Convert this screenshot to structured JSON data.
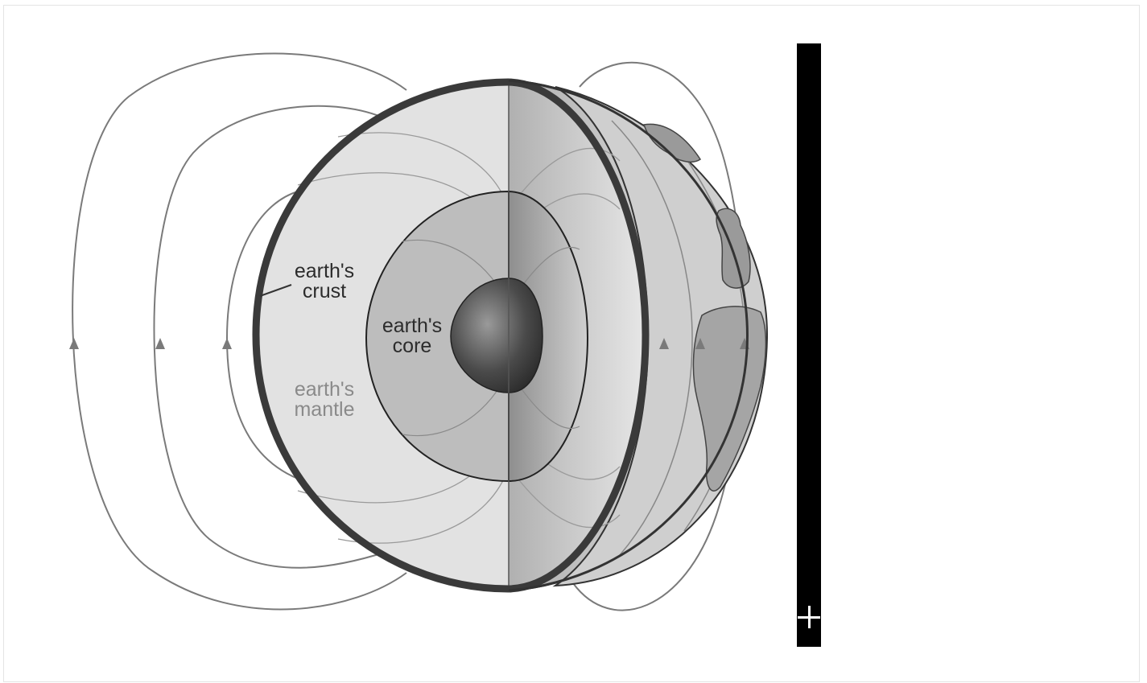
{
  "labels": {
    "crust": [
      "earth's",
      "crust"
    ],
    "core": [
      "earth's",
      "core"
    ],
    "mantle": [
      "earth's",
      "mantle"
    ]
  },
  "colors": {
    "outline": "#333333",
    "field_line": "#777777",
    "mantle_fill": "#e2e2e2",
    "outer_core_fill": "#bdbdbd",
    "inner_core_fill": "#444444",
    "side_bar": "#000000",
    "mantle_label": "#8a8a8a"
  },
  "side_bar": {
    "button_icon": "plus-icon"
  }
}
